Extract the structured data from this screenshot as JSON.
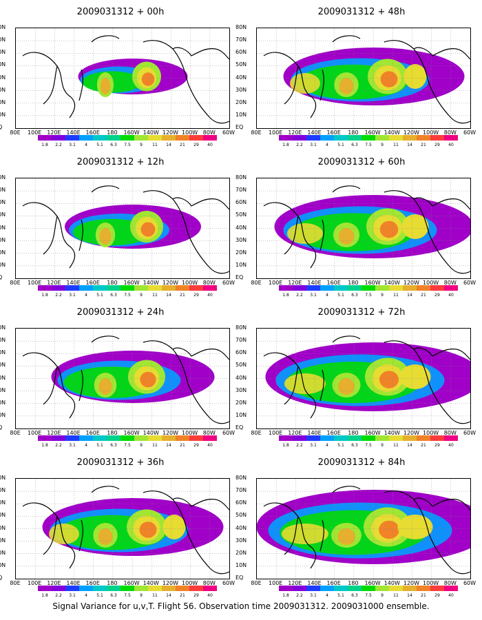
{
  "panels": [
    {
      "title": "2009031312 + 00h"
    },
    {
      "title": "2009031312 + 48h"
    },
    {
      "title": "2009031312 + 12h"
    },
    {
      "title": "2009031312 + 60h"
    },
    {
      "title": "2009031312 + 24h"
    },
    {
      "title": "2009031312 + 72h"
    },
    {
      "title": "2009031312 + 36h"
    },
    {
      "title": "2009031312 + 84h"
    }
  ],
  "y_axis_labels": [
    "80N",
    "70N",
    "60N",
    "50N",
    "40N",
    "30N",
    "20N",
    "10N",
    "EQ"
  ],
  "x_axis_labels": [
    "80E",
    "100E",
    "120E",
    "140E",
    "160E",
    "180",
    "160W",
    "140W",
    "120W",
    "100W",
    "80W",
    "60W"
  ],
  "colorbar": {
    "labels": [
      "1.8",
      "2.2",
      "3.1",
      "4",
      "5.1",
      "6.3",
      "7.5",
      "9",
      "11",
      "14",
      "21",
      "29",
      "40"
    ],
    "colors": [
      "#a000c8",
      "#8200dc",
      "#1e3cff",
      "#00a0ff",
      "#00c8c8",
      "#00d28c",
      "#00dc00",
      "#a0e632",
      "#e6dc32",
      "#e6af2d",
      "#f08228",
      "#fa3c3c",
      "#f00082"
    ]
  },
  "caption": "Signal Variance for u,v,T. Flight 56. Observation time 2009031312. 2009031000 ensemble."
}
